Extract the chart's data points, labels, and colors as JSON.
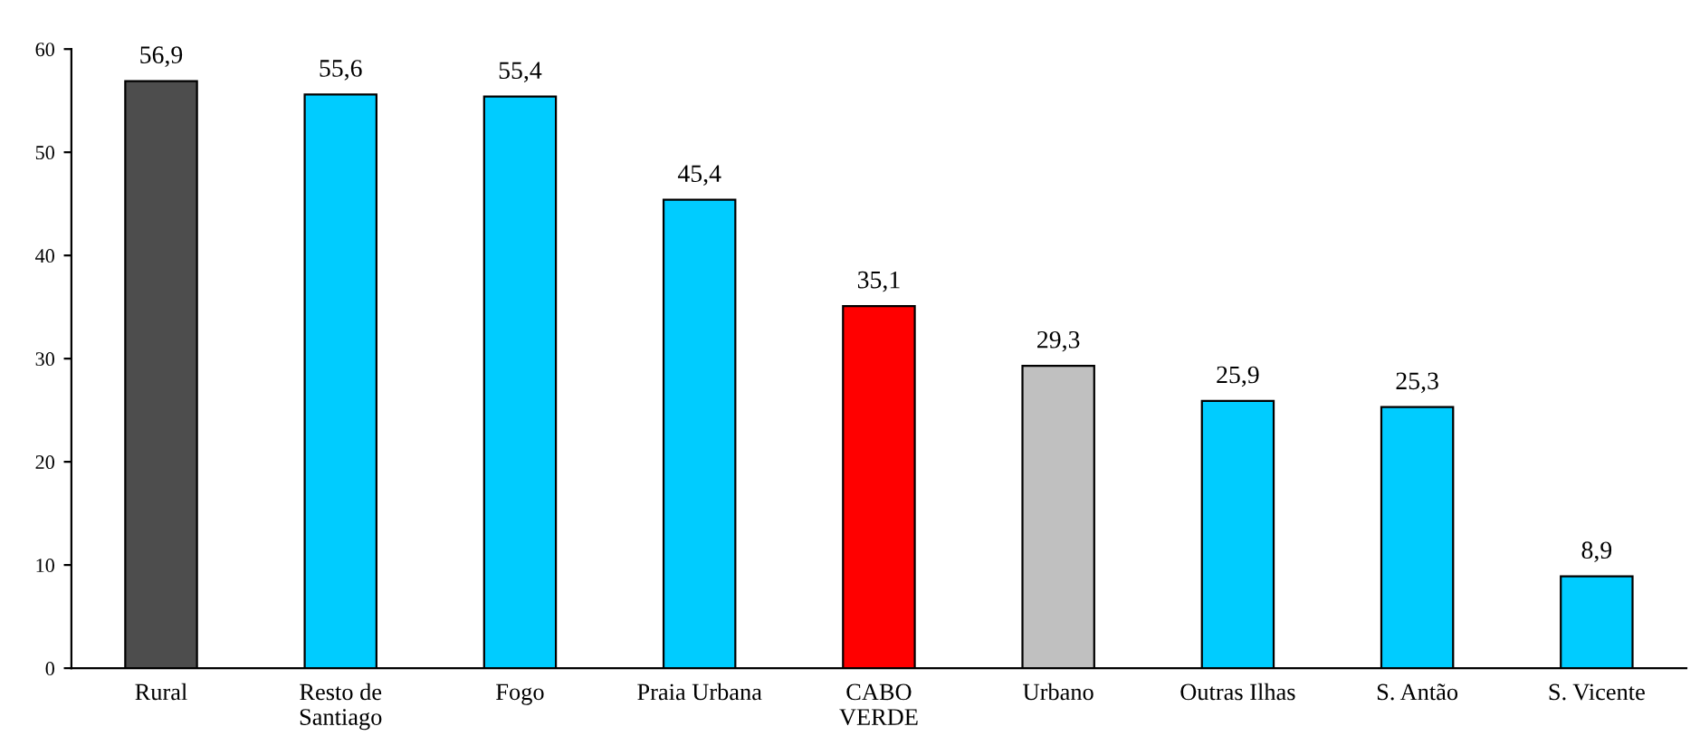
{
  "chart_data": {
    "type": "bar",
    "categories": [
      "Rural",
      "Resto de\nSantiago",
      "Fogo",
      "Praia Urbana",
      "CABO\nVERDE",
      "Urbano",
      "Outras Ilhas",
      "S. Antão",
      "S. Vicente"
    ],
    "values": [
      56.9,
      55.6,
      55.4,
      45.4,
      35.1,
      29.3,
      25.9,
      25.3,
      8.9
    ],
    "colors": [
      "#4d4d4d",
      "#00ccff",
      "#00ccff",
      "#00ccff",
      "#ff0000",
      "#c0c0c0",
      "#00ccff",
      "#00ccff",
      "#00ccff"
    ],
    "value_labels": [
      "56,9",
      "55,6",
      "55,4",
      "45,4",
      "35,1",
      "29,3",
      "25,9",
      "25,3",
      "8,9"
    ],
    "ylim": [
      0,
      60
    ],
    "yticks": [
      0,
      10,
      20,
      30,
      40,
      50,
      60
    ],
    "grid": false,
    "legend": false
  }
}
